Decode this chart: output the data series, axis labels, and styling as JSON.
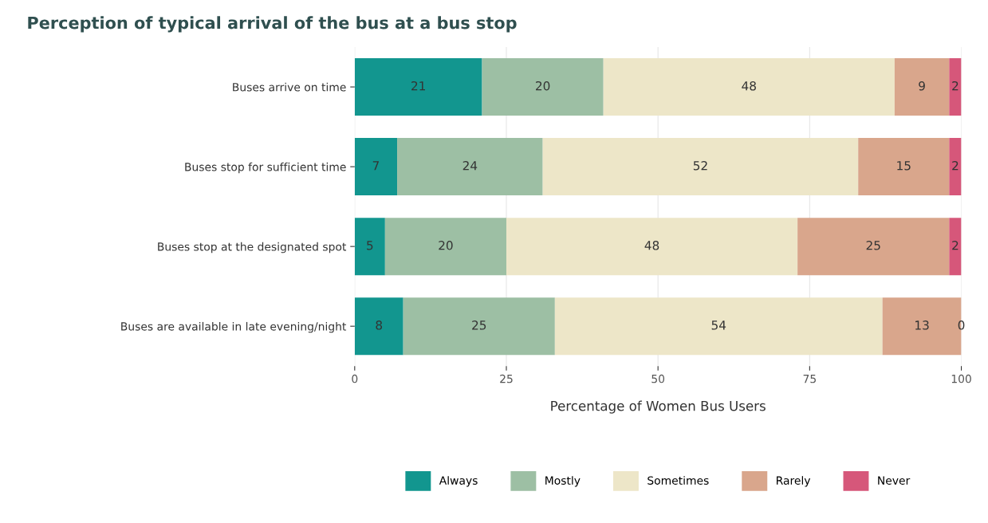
{
  "chart_data": {
    "type": "bar",
    "orientation": "horizontal",
    "stacked": true,
    "title": "Perception of typical arrival of the bus at a bus stop",
    "xlabel": "Percentage of Women Bus Users",
    "categories": [
      "Buses arrive on time",
      "Buses stop for sufficient time",
      "Buses stop at the designated spot",
      "Buses are available in late evening/night"
    ],
    "series": [
      {
        "name": "Always",
        "color": "#12968f",
        "values": [
          21,
          7,
          5,
          8
        ]
      },
      {
        "name": "Mostly",
        "color": "#9dbfa4",
        "values": [
          20,
          24,
          20,
          25
        ]
      },
      {
        "name": "Sometimes",
        "color": "#ede6c8",
        "values": [
          48,
          52,
          48,
          54
        ]
      },
      {
        "name": "Rarely",
        "color": "#d9a68c",
        "values": [
          9,
          15,
          25,
          13
        ]
      },
      {
        "name": "Never",
        "color": "#d6577a",
        "values": [
          2,
          2,
          2,
          0
        ]
      }
    ],
    "xlim": [
      0,
      100
    ],
    "xticks": [
      0,
      25,
      50,
      75,
      100
    ],
    "grid": "x",
    "legend": "bottom",
    "data_labels": true
  }
}
